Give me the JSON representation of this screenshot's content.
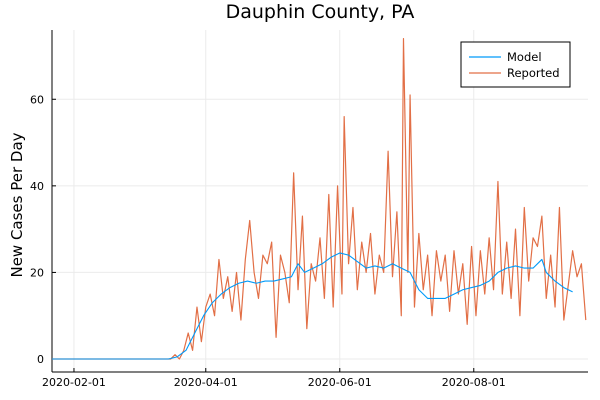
{
  "chart_data": {
    "type": "line",
    "title": "Dauphin County, PA",
    "xlabel": "",
    "ylabel": "New Cases Per Day",
    "x_axis": "date",
    "x_range": [
      "2020-01-22",
      "2020-09-22"
    ],
    "ylim": [
      -3,
      76
    ],
    "x_ticks": [
      "2020-02-01",
      "2020-04-01",
      "2020-06-01",
      "2020-08-01"
    ],
    "y_ticks": [
      0,
      20,
      40,
      60
    ],
    "grid": true,
    "legend_position": "top-right",
    "series": [
      {
        "name": "Model",
        "color": "#009af9",
        "points": [
          [
            "2020-01-22",
            0
          ],
          [
            "2020-03-15",
            0
          ],
          [
            "2020-03-19",
            0.5
          ],
          [
            "2020-03-23",
            2
          ],
          [
            "2020-03-27",
            6
          ],
          [
            "2020-03-31",
            10
          ],
          [
            "2020-04-04",
            13
          ],
          [
            "2020-04-08",
            15
          ],
          [
            "2020-04-12",
            16.5
          ],
          [
            "2020-04-16",
            17.5
          ],
          [
            "2020-04-20",
            18
          ],
          [
            "2020-04-24",
            17.5
          ],
          [
            "2020-04-28",
            18
          ],
          [
            "2020-05-02",
            18
          ],
          [
            "2020-05-06",
            18.5
          ],
          [
            "2020-05-10",
            19
          ],
          [
            "2020-05-13",
            22
          ],
          [
            "2020-05-16",
            20
          ],
          [
            "2020-05-20",
            21
          ],
          [
            "2020-05-24",
            22
          ],
          [
            "2020-05-28",
            23.5
          ],
          [
            "2020-06-01",
            24.5
          ],
          [
            "2020-06-05",
            24
          ],
          [
            "2020-06-09",
            22.5
          ],
          [
            "2020-06-13",
            21
          ],
          [
            "2020-06-17",
            21.5
          ],
          [
            "2020-06-21",
            21
          ],
          [
            "2020-06-25",
            22
          ],
          [
            "2020-06-29",
            21
          ],
          [
            "2020-07-03",
            20
          ],
          [
            "2020-07-07",
            16
          ],
          [
            "2020-07-11",
            14
          ],
          [
            "2020-07-15",
            14
          ],
          [
            "2020-07-19",
            14
          ],
          [
            "2020-07-23",
            15
          ],
          [
            "2020-07-27",
            16
          ],
          [
            "2020-07-31",
            16.5
          ],
          [
            "2020-08-04",
            17
          ],
          [
            "2020-08-08",
            18
          ],
          [
            "2020-08-12",
            20
          ],
          [
            "2020-08-16",
            21
          ],
          [
            "2020-08-20",
            21.5
          ],
          [
            "2020-08-24",
            21
          ],
          [
            "2020-08-28",
            21
          ],
          [
            "2020-09-01",
            23
          ],
          [
            "2020-09-03",
            20
          ],
          [
            "2020-09-07",
            18
          ],
          [
            "2020-09-11",
            16.5
          ],
          [
            "2020-09-15",
            15.5
          ]
        ]
      },
      {
        "name": "Reported",
        "color": "#e26f46",
        "points": [
          [
            "2020-01-22",
            0
          ],
          [
            "2020-03-16",
            0
          ],
          [
            "2020-03-18",
            1
          ],
          [
            "2020-03-20",
            0
          ],
          [
            "2020-03-22",
            2
          ],
          [
            "2020-03-24",
            6
          ],
          [
            "2020-03-26",
            2
          ],
          [
            "2020-03-28",
            12
          ],
          [
            "2020-03-30",
            4
          ],
          [
            "2020-04-01",
            12
          ],
          [
            "2020-04-03",
            15
          ],
          [
            "2020-04-05",
            10
          ],
          [
            "2020-04-07",
            23
          ],
          [
            "2020-04-09",
            14
          ],
          [
            "2020-04-11",
            19
          ],
          [
            "2020-04-13",
            11
          ],
          [
            "2020-04-15",
            20
          ],
          [
            "2020-04-17",
            9
          ],
          [
            "2020-04-19",
            23
          ],
          [
            "2020-04-21",
            32
          ],
          [
            "2020-04-23",
            20
          ],
          [
            "2020-04-25",
            14
          ],
          [
            "2020-04-27",
            24
          ],
          [
            "2020-04-29",
            22
          ],
          [
            "2020-05-01",
            27
          ],
          [
            "2020-05-03",
            5
          ],
          [
            "2020-05-05",
            24
          ],
          [
            "2020-05-07",
            20
          ],
          [
            "2020-05-09",
            13
          ],
          [
            "2020-05-11",
            43
          ],
          [
            "2020-05-13",
            16
          ],
          [
            "2020-05-15",
            33
          ],
          [
            "2020-05-17",
            7
          ],
          [
            "2020-05-19",
            22
          ],
          [
            "2020-05-21",
            18
          ],
          [
            "2020-05-23",
            28
          ],
          [
            "2020-05-25",
            14
          ],
          [
            "2020-05-27",
            38
          ],
          [
            "2020-05-29",
            12
          ],
          [
            "2020-05-31",
            40
          ],
          [
            "2020-06-02",
            15
          ],
          [
            "2020-06-03",
            56
          ],
          [
            "2020-06-05",
            22
          ],
          [
            "2020-06-07",
            35
          ],
          [
            "2020-06-09",
            16
          ],
          [
            "2020-06-11",
            27
          ],
          [
            "2020-06-13",
            20
          ],
          [
            "2020-06-15",
            29
          ],
          [
            "2020-06-17",
            15
          ],
          [
            "2020-06-19",
            24
          ],
          [
            "2020-06-21",
            20
          ],
          [
            "2020-06-23",
            48
          ],
          [
            "2020-06-25",
            19
          ],
          [
            "2020-06-27",
            34
          ],
          [
            "2020-06-29",
            10
          ],
          [
            "2020-06-30",
            74
          ],
          [
            "2020-07-02",
            20
          ],
          [
            "2020-07-03",
            61
          ],
          [
            "2020-07-05",
            12
          ],
          [
            "2020-07-07",
            29
          ],
          [
            "2020-07-09",
            16
          ],
          [
            "2020-07-11",
            24
          ],
          [
            "2020-07-13",
            10
          ],
          [
            "2020-07-15",
            25
          ],
          [
            "2020-07-17",
            18
          ],
          [
            "2020-07-19",
            24
          ],
          [
            "2020-07-21",
            11
          ],
          [
            "2020-07-23",
            25
          ],
          [
            "2020-07-25",
            15
          ],
          [
            "2020-07-27",
            22
          ],
          [
            "2020-07-29",
            8
          ],
          [
            "2020-07-31",
            26
          ],
          [
            "2020-08-02",
            10
          ],
          [
            "2020-08-04",
            25
          ],
          [
            "2020-08-06",
            15
          ],
          [
            "2020-08-08",
            28
          ],
          [
            "2020-08-10",
            16
          ],
          [
            "2020-08-12",
            41
          ],
          [
            "2020-08-14",
            15
          ],
          [
            "2020-08-16",
            27
          ],
          [
            "2020-08-18",
            14
          ],
          [
            "2020-08-20",
            30
          ],
          [
            "2020-08-22",
            10
          ],
          [
            "2020-08-24",
            35
          ],
          [
            "2020-08-26",
            18
          ],
          [
            "2020-08-28",
            28
          ],
          [
            "2020-08-30",
            26
          ],
          [
            "2020-09-01",
            33
          ],
          [
            "2020-09-03",
            14
          ],
          [
            "2020-09-05",
            24
          ],
          [
            "2020-09-07",
            12
          ],
          [
            "2020-09-09",
            35
          ],
          [
            "2020-09-11",
            9
          ],
          [
            "2020-09-13",
            17
          ],
          [
            "2020-09-15",
            25
          ],
          [
            "2020-09-17",
            19
          ],
          [
            "2020-09-19",
            22
          ],
          [
            "2020-09-21",
            9
          ]
        ]
      }
    ]
  }
}
